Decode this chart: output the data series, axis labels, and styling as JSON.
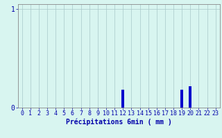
{
  "xlabel": "Précipitations 6min ( mm )",
  "xlim": [
    -0.5,
    23.5
  ],
  "ylim": [
    0,
    1.05
  ],
  "yticks": [
    0,
    1
  ],
  "xticks": [
    0,
    1,
    2,
    3,
    4,
    5,
    6,
    7,
    8,
    9,
    10,
    11,
    12,
    13,
    14,
    15,
    16,
    17,
    18,
    19,
    20,
    21,
    22,
    23
  ],
  "bar_data": {
    "12": 0.18,
    "19": 0.18,
    "20": 0.22
  },
  "bar_color": "#0000cc",
  "background_color": "#d8f5f0",
  "grid_color": "#a8c8c8",
  "axis_color": "#888888",
  "text_color": "#0000aa",
  "xlabel_fontsize": 7,
  "tick_fontsize": 6,
  "bar_width": 0.35
}
